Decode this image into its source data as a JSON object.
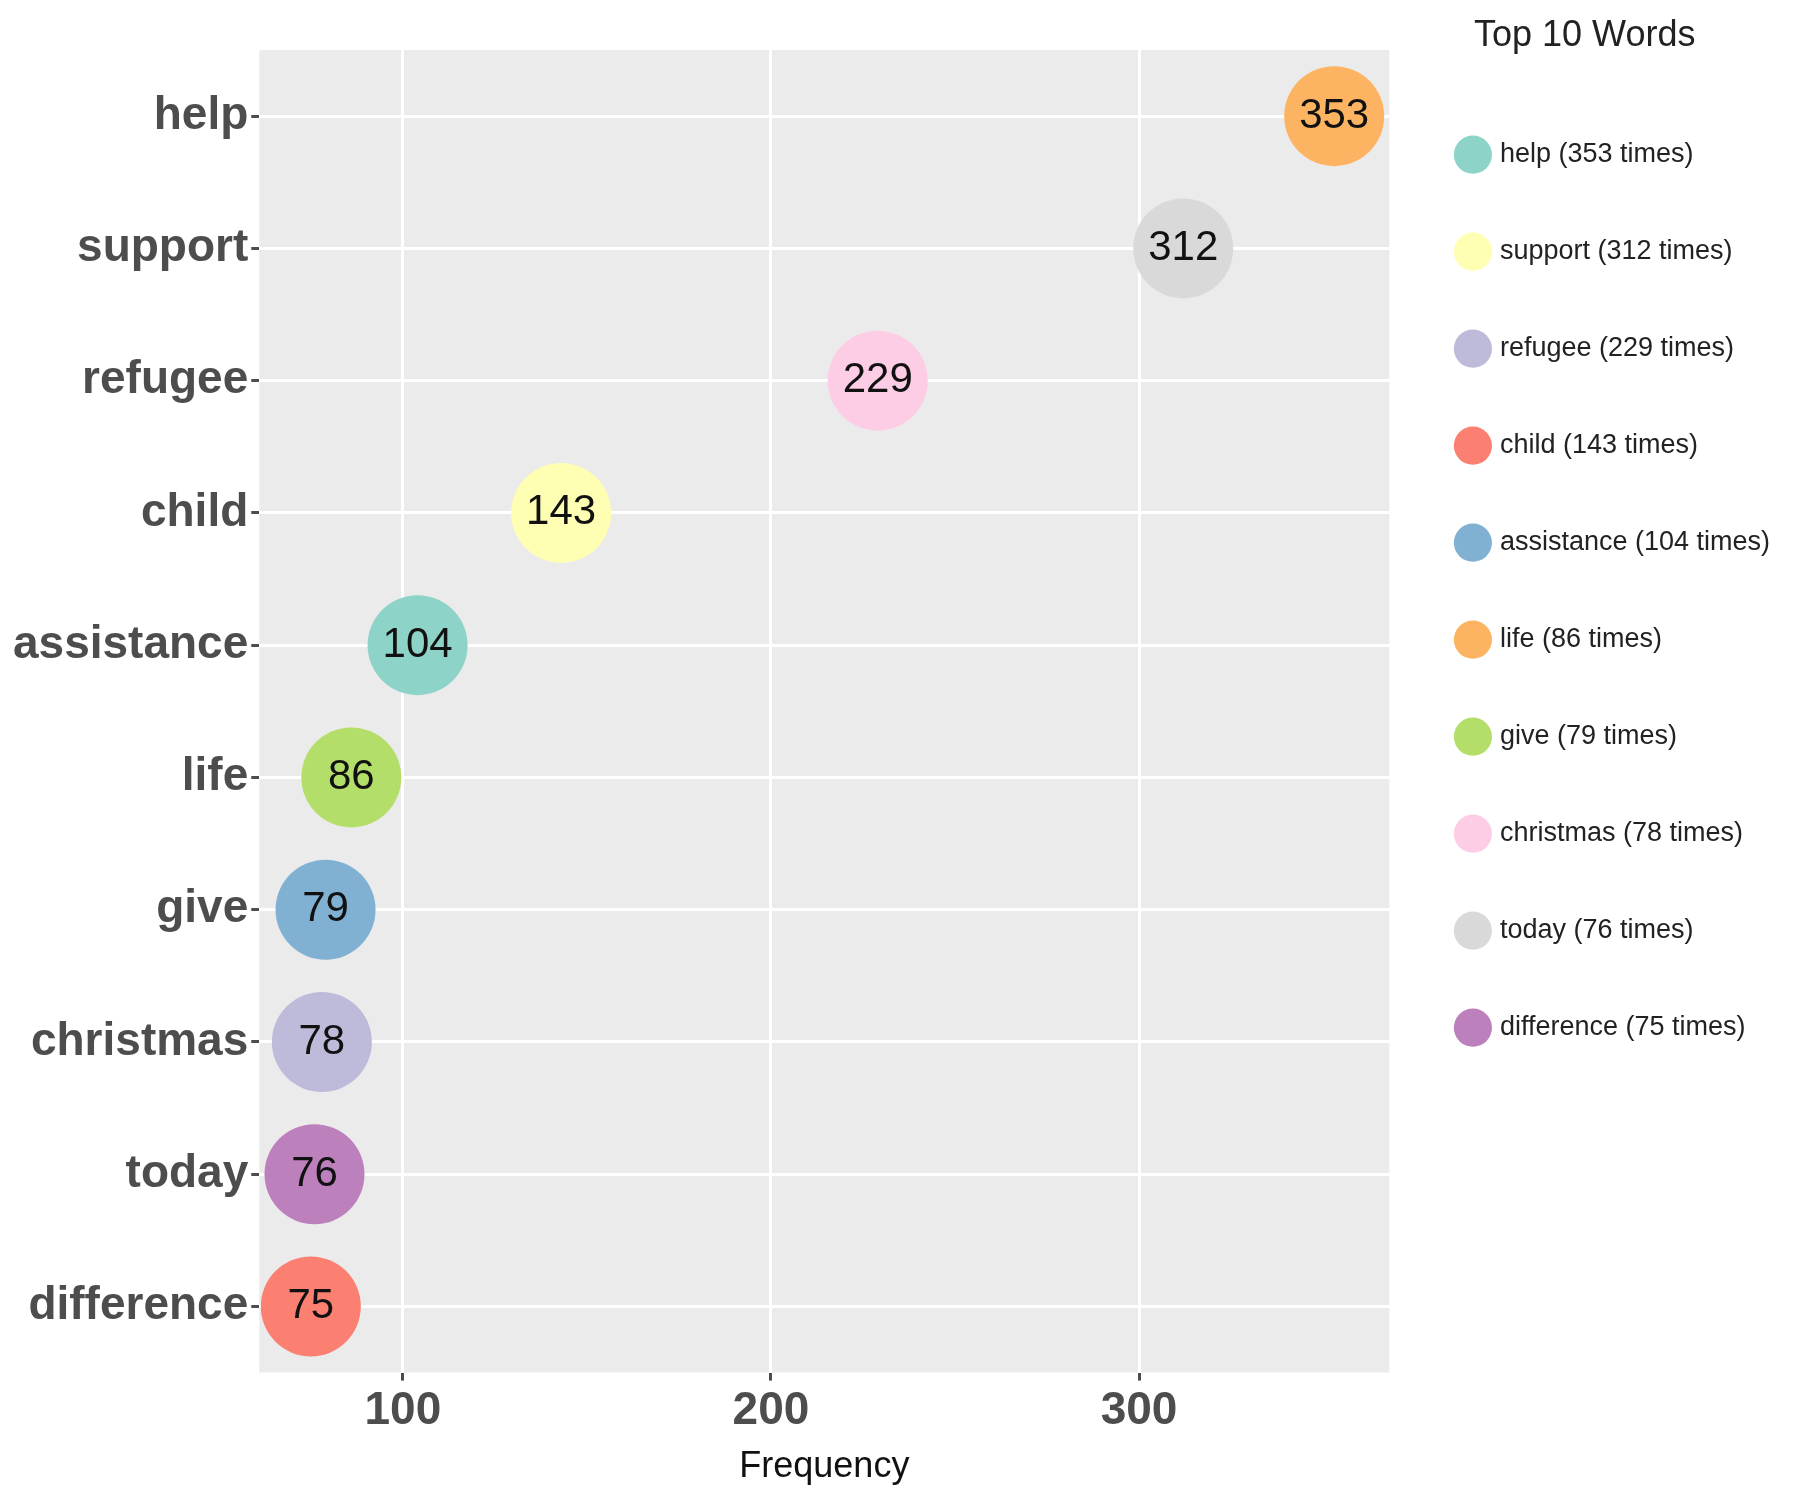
{
  "chart_data": {
    "type": "scatter",
    "orientation": "horizontal",
    "xlabel": "Frequency",
    "legend_title": "Top 10 Words",
    "legend": "right",
    "grid": true,
    "marker": "circle",
    "data_labels": true,
    "categories": [
      "help",
      "support",
      "refugee",
      "child",
      "assistance",
      "life",
      "give",
      "christmas",
      "today",
      "difference"
    ],
    "xlim": [
      61,
      368
    ],
    "xticks": [
      100,
      200,
      300
    ],
    "series": [
      {
        "name": "help (353 times)",
        "color": "#8dd3c7",
        "values": [
          null,
          null,
          null,
          null,
          104,
          null,
          null,
          null,
          null,
          null
        ]
      },
      {
        "name": "support (312 times)",
        "color": "#ffffb3",
        "values": [
          null,
          null,
          null,
          143,
          null,
          null,
          null,
          null,
          null,
          null
        ]
      },
      {
        "name": "refugee (229 times)",
        "color": "#bebada",
        "values": [
          null,
          null,
          null,
          null,
          null,
          null,
          null,
          78,
          null,
          null
        ]
      },
      {
        "name": "child (143 times)",
        "color": "#fb8072",
        "values": [
          null,
          null,
          null,
          null,
          null,
          null,
          null,
          null,
          null,
          75
        ]
      },
      {
        "name": "assistance (104 times)",
        "color": "#80b1d3",
        "values": [
          null,
          null,
          null,
          null,
          null,
          null,
          79,
          null,
          null,
          null
        ]
      },
      {
        "name": "life (86 times)",
        "color": "#fdb462",
        "values": [
          353,
          null,
          null,
          null,
          null,
          null,
          null,
          null,
          null,
          null
        ]
      },
      {
        "name": "give (79 times)",
        "color": "#b3de69",
        "values": [
          null,
          null,
          null,
          null,
          null,
          86,
          null,
          null,
          null,
          null
        ]
      },
      {
        "name": "christmas (78 times)",
        "color": "#fccde5",
        "values": [
          null,
          null,
          229,
          null,
          null,
          null,
          null,
          null,
          null,
          null
        ]
      },
      {
        "name": "today (76 times)",
        "color": "#d9d9d9",
        "values": [
          null,
          312,
          null,
          null,
          null,
          null,
          null,
          null,
          null,
          null
        ]
      },
      {
        "name": "difference (75 times)",
        "color": "#bc80bd",
        "values": [
          null,
          null,
          null,
          null,
          null,
          null,
          null,
          null,
          76,
          null
        ]
      }
    ]
  }
}
